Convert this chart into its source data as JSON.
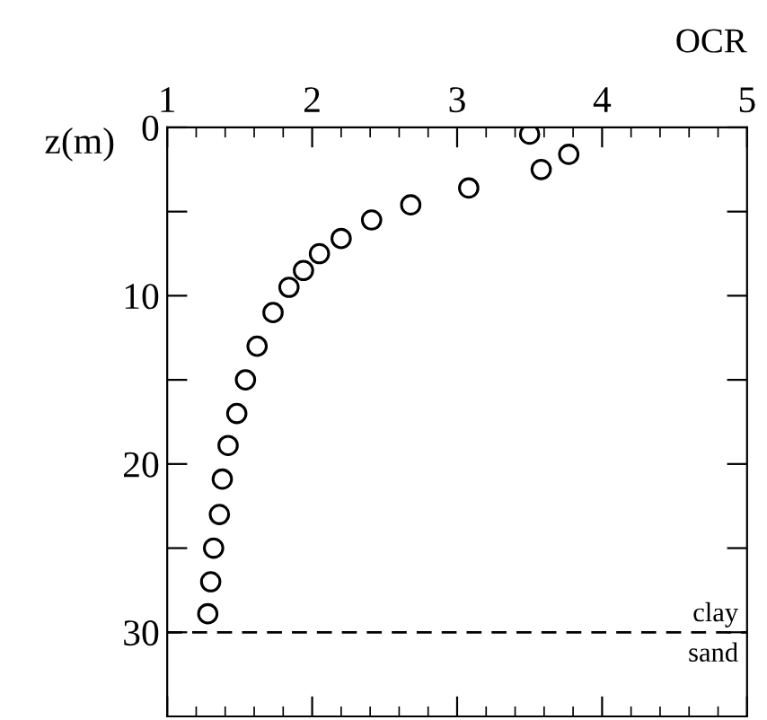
{
  "chart_data": {
    "type": "scatter",
    "xlabel": "OCR",
    "ylabel": "z(m)",
    "x": [
      3.5,
      3.77,
      3.58,
      3.08,
      2.68,
      2.41,
      2.2,
      2.05,
      1.94,
      1.84,
      1.73,
      1.62,
      1.54,
      1.48,
      1.42,
      1.38,
      1.36,
      1.32,
      1.3,
      1.28
    ],
    "values": [
      0.4,
      1.6,
      2.5,
      3.6,
      4.6,
      5.5,
      6.6,
      7.5,
      8.5,
      9.5,
      11.0,
      13.0,
      15.0,
      17.0,
      18.9,
      20.9,
      23.0,
      25.0,
      27.0,
      28.9
    ],
    "color": "#000000",
    "marker": "circle",
    "xlim": [
      1,
      5
    ],
    "xticks": [
      1,
      2,
      3,
      4,
      5
    ],
    "ylim": [
      35,
      0
    ],
    "yticks": [
      0,
      {
        "value": 5,
        "label": null
      },
      10,
      {
        "value": 15,
        "label": null
      },
      20,
      {
        "value": 25,
        "label": null
      },
      30
    ],
    "ref_lines": [
      {
        "axis": "y",
        "value": 30,
        "label": "clay",
        "color": "#000000",
        "line_style": "dashed"
      }
    ],
    "annotations": [
      "sand"
    ],
    "grid": false,
    "legend": false
  }
}
